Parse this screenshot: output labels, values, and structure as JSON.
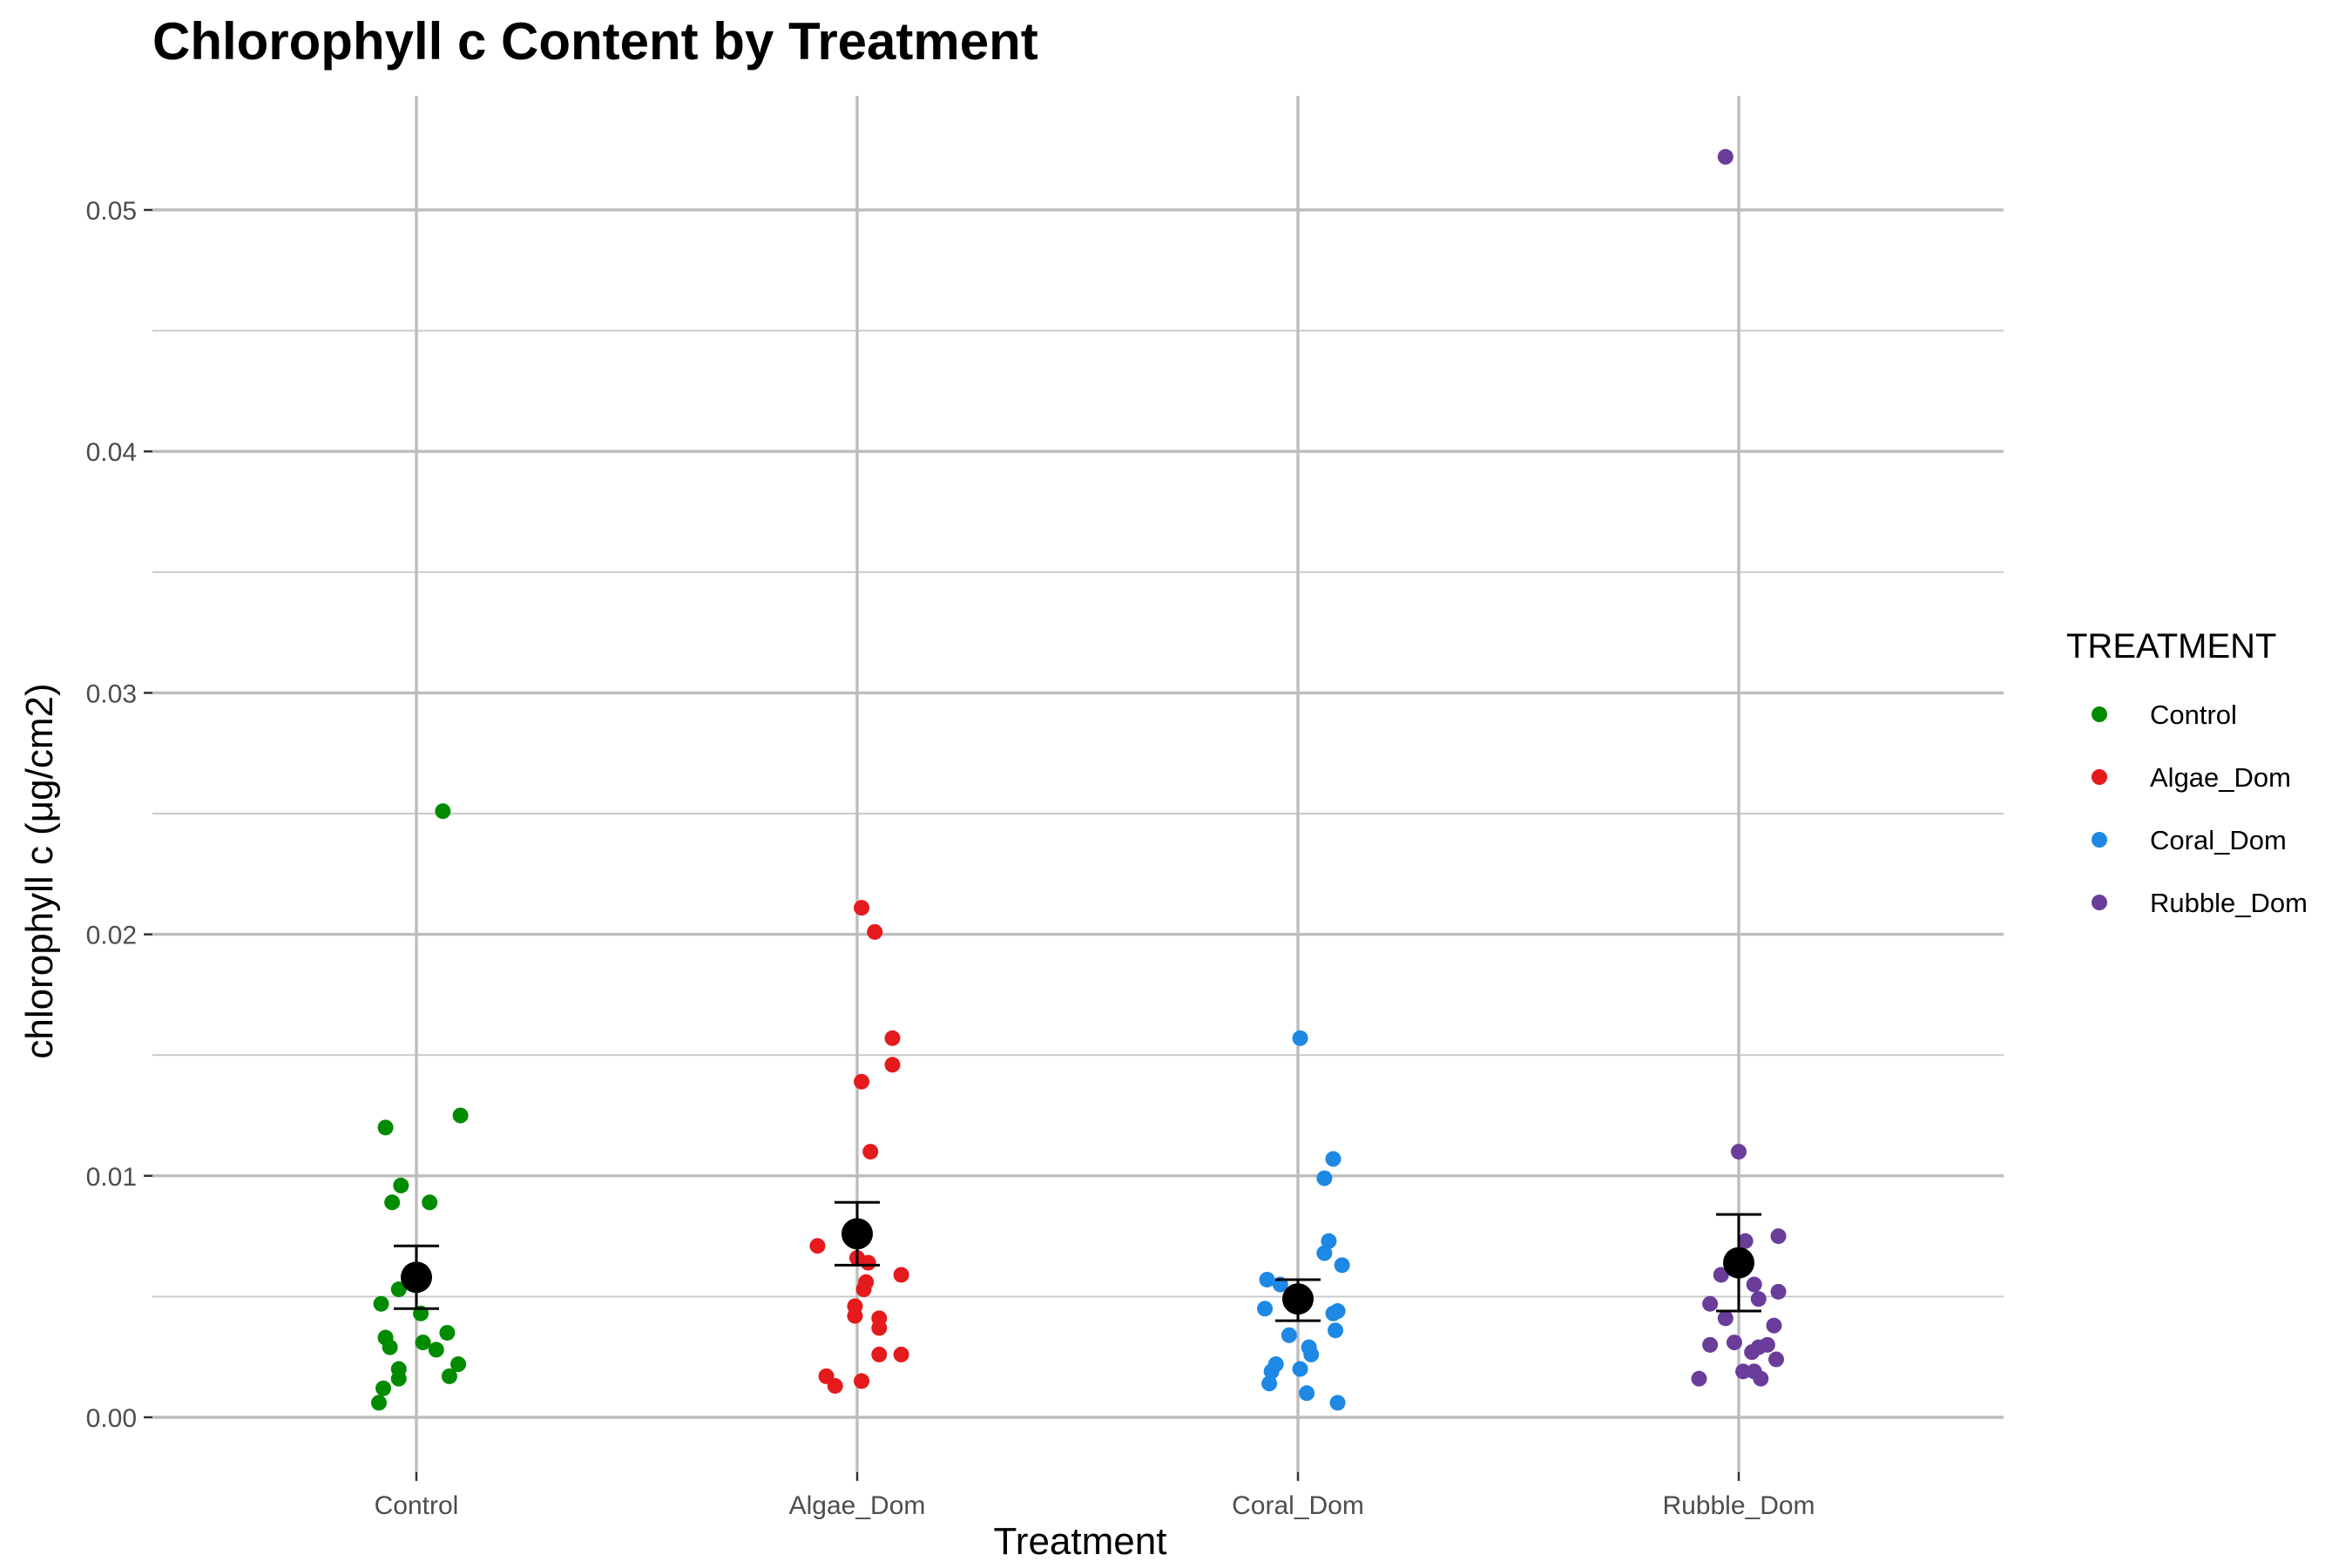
{
  "chart_data": {
    "type": "scatter",
    "title": "Chlorophyll c Content by Treatment",
    "xlabel": "Treatment",
    "ylabel": "chlorophyll c (μg/cm2)",
    "categories": [
      "Control",
      "Algae_Dom",
      "Coral_Dom",
      "Rubble_Dom"
    ],
    "ylim": [
      -0.0015,
      0.0548
    ],
    "yticks": [
      0.0,
      0.01,
      0.02,
      0.03,
      0.04,
      0.05
    ],
    "ytick_labels": [
      "0.00",
      "0.01",
      "0.02",
      "0.03",
      "0.04",
      "0.05"
    ],
    "grid": true,
    "legend": {
      "title": "TREATMENT",
      "placement": "right",
      "entries": [
        "Control",
        "Algae_Dom",
        "Coral_Dom",
        "Rubble_Dom"
      ]
    },
    "colors": {
      "Control": "#008b00",
      "Algae_Dom": "#e41a1c",
      "Coral_Dom": "#1e88e5",
      "Rubble_Dom": "#6a3d9a",
      "summary": "#000000"
    },
    "series": [
      {
        "name": "Control",
        "points": [
          {
            "dx": 0.06,
            "y": 0.0251
          },
          {
            "dx": 0.1,
            "y": 0.0125
          },
          {
            "dx": -0.07,
            "y": 0.012
          },
          {
            "dx": -0.035,
            "y": 0.0096
          },
          {
            "dx": -0.055,
            "y": 0.0089
          },
          {
            "dx": 0.03,
            "y": 0.0089
          },
          {
            "dx": -0.04,
            "y": 0.0053
          },
          {
            "dx": -0.08,
            "y": 0.0047
          },
          {
            "dx": 0.01,
            "y": 0.0043
          },
          {
            "dx": 0.07,
            "y": 0.0035
          },
          {
            "dx": -0.07,
            "y": 0.0033
          },
          {
            "dx": 0.015,
            "y": 0.0031
          },
          {
            "dx": -0.06,
            "y": 0.0029
          },
          {
            "dx": 0.045,
            "y": 0.0028
          },
          {
            "dx": 0.095,
            "y": 0.0022
          },
          {
            "dx": -0.04,
            "y": 0.002
          },
          {
            "dx": 0.075,
            "y": 0.0017
          },
          {
            "dx": -0.04,
            "y": 0.0016
          },
          {
            "dx": -0.075,
            "y": 0.0012
          },
          {
            "dx": -0.085,
            "y": 0.0006
          }
        ]
      },
      {
        "name": "Algae_Dom",
        "points": [
          {
            "dx": 0.01,
            "y": 0.0211
          },
          {
            "dx": 0.04,
            "y": 0.0201
          },
          {
            "dx": 0.08,
            "y": 0.0157
          },
          {
            "dx": 0.08,
            "y": 0.0146
          },
          {
            "dx": 0.01,
            "y": 0.0139
          },
          {
            "dx": 0.03,
            "y": 0.011
          },
          {
            "dx": -0.09,
            "y": 0.0071
          },
          {
            "dx": 0.0,
            "y": 0.0066
          },
          {
            "dx": 0.025,
            "y": 0.0064
          },
          {
            "dx": 0.1,
            "y": 0.0059
          },
          {
            "dx": 0.02,
            "y": 0.0056
          },
          {
            "dx": 0.015,
            "y": 0.0053
          },
          {
            "dx": -0.005,
            "y": 0.0046
          },
          {
            "dx": -0.005,
            "y": 0.0042
          },
          {
            "dx": 0.05,
            "y": 0.0041
          },
          {
            "dx": 0.05,
            "y": 0.0037
          },
          {
            "dx": 0.1,
            "y": 0.0026
          },
          {
            "dx": 0.05,
            "y": 0.0026
          },
          {
            "dx": -0.07,
            "y": 0.0017
          },
          {
            "dx": 0.01,
            "y": 0.0015
          },
          {
            "dx": -0.05,
            "y": 0.0013
          }
        ]
      },
      {
        "name": "Coral_Dom",
        "points": [
          {
            "dx": 0.005,
            "y": 0.0157
          },
          {
            "dx": 0.08,
            "y": 0.0107
          },
          {
            "dx": 0.06,
            "y": 0.0099
          },
          {
            "dx": 0.07,
            "y": 0.0073
          },
          {
            "dx": 0.06,
            "y": 0.0068
          },
          {
            "dx": 0.1,
            "y": 0.0063
          },
          {
            "dx": -0.07,
            "y": 0.0057
          },
          {
            "dx": -0.04,
            "y": 0.0055
          },
          {
            "dx": -0.075,
            "y": 0.0045
          },
          {
            "dx": 0.09,
            "y": 0.0044
          },
          {
            "dx": 0.08,
            "y": 0.0043
          },
          {
            "dx": 0.085,
            "y": 0.0036
          },
          {
            "dx": -0.02,
            "y": 0.0034
          },
          {
            "dx": 0.025,
            "y": 0.0029
          },
          {
            "dx": 0.03,
            "y": 0.0026
          },
          {
            "dx": -0.05,
            "y": 0.0022
          },
          {
            "dx": -0.06,
            "y": 0.0019
          },
          {
            "dx": 0.005,
            "y": 0.002
          },
          {
            "dx": -0.065,
            "y": 0.0014
          },
          {
            "dx": 0.02,
            "y": 0.001
          },
          {
            "dx": 0.09,
            "y": 0.0006
          }
        ]
      },
      {
        "name": "Rubble_Dom",
        "points": [
          {
            "dx": -0.03,
            "y": 0.0522
          },
          {
            "dx": 0.0,
            "y": 0.011
          },
          {
            "dx": 0.09,
            "y": 0.0075
          },
          {
            "dx": 0.015,
            "y": 0.0073
          },
          {
            "dx": -0.04,
            "y": 0.0059
          },
          {
            "dx": 0.035,
            "y": 0.0055
          },
          {
            "dx": 0.09,
            "y": 0.0052
          },
          {
            "dx": 0.045,
            "y": 0.0049
          },
          {
            "dx": -0.065,
            "y": 0.0047
          },
          {
            "dx": -0.03,
            "y": 0.0041
          },
          {
            "dx": 0.08,
            "y": 0.0038
          },
          {
            "dx": -0.01,
            "y": 0.0031
          },
          {
            "dx": -0.065,
            "y": 0.003
          },
          {
            "dx": 0.065,
            "y": 0.003
          },
          {
            "dx": 0.045,
            "y": 0.0029
          },
          {
            "dx": 0.03,
            "y": 0.0027
          },
          {
            "dx": 0.085,
            "y": 0.0024
          },
          {
            "dx": 0.01,
            "y": 0.0019
          },
          {
            "dx": 0.035,
            "y": 0.0019
          },
          {
            "dx": -0.09,
            "y": 0.0016
          },
          {
            "dx": 0.05,
            "y": 0.0016
          }
        ]
      }
    ],
    "summary": [
      {
        "name": "Control",
        "mean": 0.0058,
        "lower": 0.0045,
        "upper": 0.0071
      },
      {
        "name": "Algae_Dom",
        "mean": 0.0076,
        "lower": 0.0063,
        "upper": 0.0089
      },
      {
        "name": "Coral_Dom",
        "mean": 0.0049,
        "lower": 0.004,
        "upper": 0.0057
      },
      {
        "name": "Rubble_Dom",
        "mean": 0.0064,
        "lower": 0.0044,
        "upper": 0.0084
      }
    ]
  }
}
